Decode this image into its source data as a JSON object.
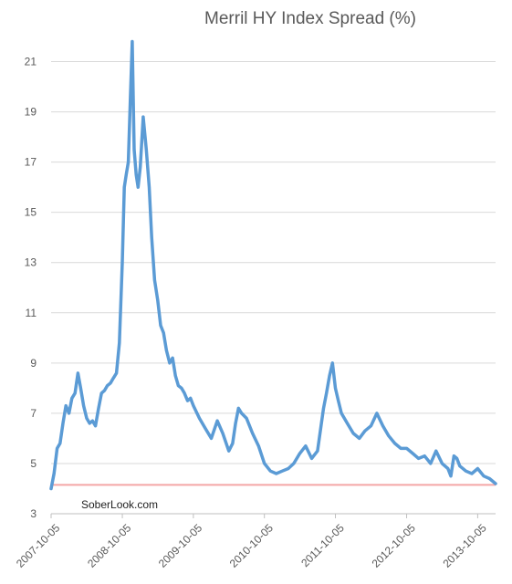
{
  "chart_data": {
    "type": "line",
    "title": "Merril HY Index Spread (%)",
    "watermark": "SoberLook.com",
    "xlabel": "",
    "ylabel": "",
    "ylim": [
      3,
      22
    ],
    "yticks": [
      3,
      5,
      7,
      9,
      11,
      13,
      15,
      17,
      19,
      21
    ],
    "xlim": [
      "2007-10-05",
      "2014-01-05"
    ],
    "xticks": [
      "2007-10-05",
      "2008-10-05",
      "2009-10-05",
      "2010-10-05",
      "2011-10-05",
      "2012-10-05",
      "2013-10-05"
    ],
    "grid": "horizontal",
    "reference_line": {
      "y": 4.15,
      "color": "#f4a6a6"
    },
    "series_color": "#5b9bd5",
    "series": [
      {
        "x": [
          "2007-10-05",
          "2007-10-20",
          "2007-11-05",
          "2007-11-20",
          "2007-12-05",
          "2007-12-20",
          "2008-01-05",
          "2008-01-20",
          "2008-02-05",
          "2008-02-20",
          "2008-03-05",
          "2008-03-20",
          "2008-04-05",
          "2008-04-20",
          "2008-05-05",
          "2008-05-20",
          "2008-06-05",
          "2008-06-20",
          "2008-07-05",
          "2008-07-20",
          "2008-08-05",
          "2008-08-20",
          "2008-09-05",
          "2008-09-20",
          "2008-10-05",
          "2008-10-15",
          "2008-10-25",
          "2008-11-05",
          "2008-11-15",
          "2008-11-25",
          "2008-12-05",
          "2008-12-15",
          "2008-12-25",
          "2009-01-05",
          "2009-01-20",
          "2009-02-05",
          "2009-02-20",
          "2009-03-05",
          "2009-03-20",
          "2009-04-05",
          "2009-04-20",
          "2009-05-05",
          "2009-05-20",
          "2009-06-05",
          "2009-06-20",
          "2009-07-05",
          "2009-07-20",
          "2009-08-05",
          "2009-08-20",
          "2009-09-05",
          "2009-09-20",
          "2009-10-05",
          "2009-11-05",
          "2009-12-05",
          "2010-01-05",
          "2010-02-05",
          "2010-03-05",
          "2010-04-05",
          "2010-04-25",
          "2010-05-10",
          "2010-05-25",
          "2010-06-10",
          "2010-07-05",
          "2010-08-05",
          "2010-09-05",
          "2010-10-05",
          "2010-11-05",
          "2010-12-05",
          "2011-01-05",
          "2011-02-05",
          "2011-03-05",
          "2011-04-05",
          "2011-05-05",
          "2011-06-05",
          "2011-07-05",
          "2011-08-05",
          "2011-08-20",
          "2011-09-05",
          "2011-09-20",
          "2011-10-05",
          "2011-10-20",
          "2011-11-05",
          "2011-11-20",
          "2011-12-05",
          "2012-01-05",
          "2012-02-05",
          "2012-03-05",
          "2012-04-05",
          "2012-05-05",
          "2012-06-05",
          "2012-07-05",
          "2012-08-05",
          "2012-09-05",
          "2012-10-05",
          "2012-11-05",
          "2012-12-05",
          "2013-01-05",
          "2013-02-05",
          "2013-03-05",
          "2013-04-05",
          "2013-05-05",
          "2013-05-20",
          "2013-06-05",
          "2013-06-20",
          "2013-07-05",
          "2013-08-05",
          "2013-09-05",
          "2013-10-05",
          "2013-11-05",
          "2013-12-05",
          "2014-01-05"
        ],
        "y": [
          4.0,
          4.6,
          5.6,
          5.8,
          6.6,
          7.3,
          7.0,
          7.6,
          7.8,
          8.6,
          8.0,
          7.3,
          6.8,
          6.6,
          6.7,
          6.5,
          7.2,
          7.8,
          7.9,
          8.1,
          8.2,
          8.4,
          8.6,
          9.8,
          13.0,
          16.0,
          16.5,
          17.0,
          19.5,
          21.8,
          17.5,
          16.5,
          16.0,
          16.8,
          18.8,
          17.5,
          16.0,
          14.0,
          12.3,
          11.5,
          10.5,
          10.2,
          9.5,
          9.0,
          9.2,
          8.5,
          8.1,
          8.0,
          7.8,
          7.5,
          7.6,
          7.3,
          6.8,
          6.4,
          6.0,
          6.7,
          6.2,
          5.5,
          5.8,
          6.6,
          7.2,
          7.0,
          6.8,
          6.2,
          5.7,
          5.0,
          4.7,
          4.6,
          4.7,
          4.8,
          5.0,
          5.4,
          5.7,
          5.2,
          5.5,
          7.2,
          7.8,
          8.5,
          9.0,
          8.0,
          7.5,
          7.0,
          6.8,
          6.6,
          6.2,
          6.0,
          6.3,
          6.5,
          7.0,
          6.5,
          6.1,
          5.8,
          5.6,
          5.6,
          5.4,
          5.2,
          5.3,
          5.0,
          5.5,
          5.0,
          4.8,
          4.5,
          5.3,
          5.2,
          4.9,
          4.7,
          4.6,
          4.8,
          4.5,
          4.4,
          4.2
        ]
      }
    ]
  }
}
